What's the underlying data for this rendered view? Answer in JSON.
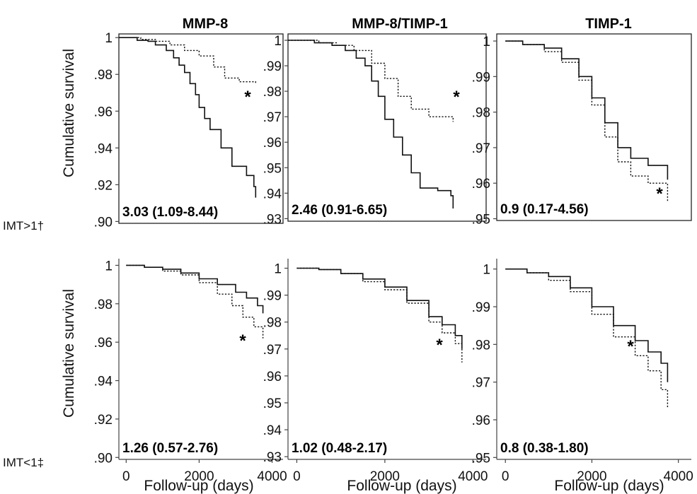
{
  "figure": {
    "ylabel": "Cumulative survival",
    "xlabel": "Follow-up (days)",
    "column_titles": [
      "MMP-8",
      "MMP-8/TIMP-1",
      "TIMP-1"
    ],
    "row_labels": [
      "IMT>1†",
      "IMT<1‡"
    ]
  },
  "chart_data": [
    {
      "type": "line",
      "row": 0,
      "col": 0,
      "title": "MMP-8",
      "row_label": "IMT>1†",
      "ylabel": "Cumulative survival",
      "xlabel": "",
      "xlim": [
        0,
        4500
      ],
      "ylim": [
        0.899,
        1.002
      ],
      "yticks": [
        1,
        0.98,
        0.96,
        0.94,
        0.92,
        0.9
      ],
      "ytick_labels": [
        "1",
        ".98",
        ".96",
        ".94",
        ".92",
        ".90"
      ],
      "xticks": [],
      "xtick_labels": [],
      "hazard_ratio": "3.03 (1.09-8.44)",
      "annotation": "*",
      "series": [
        {
          "style": "solid",
          "x": [
            0,
            500,
            800,
            1000,
            1300,
            1500,
            1650,
            1800,
            1950,
            2100,
            2200,
            2350,
            2500,
            2800,
            3100,
            3500,
            3700,
            3750
          ],
          "y": [
            1.0,
            0.9985,
            0.998,
            0.996,
            0.993,
            0.989,
            0.985,
            0.981,
            0.975,
            0.969,
            0.962,
            0.956,
            0.95,
            0.94,
            0.93,
            0.925,
            0.919,
            0.913
          ]
        },
        {
          "style": "dotted",
          "x": [
            0,
            600,
            1000,
            1400,
            1800,
            2200,
            2600,
            2900,
            3300,
            3750
          ],
          "y": [
            1.0,
            0.999,
            0.998,
            0.996,
            0.993,
            0.99,
            0.984,
            0.978,
            0.976,
            0.975
          ]
        }
      ]
    },
    {
      "type": "line",
      "row": 0,
      "col": 1,
      "title": "MMP-8/TIMP-1",
      "row_label": "IMT>1†",
      "ylabel": "",
      "xlabel": "",
      "xlim": [
        0,
        4500
      ],
      "ylim": [
        0.929,
        1.0025
      ],
      "yticks": [
        1,
        0.99,
        0.98,
        0.97,
        0.96,
        0.95,
        0.94,
        0.93
      ],
      "ytick_labels": [
        "1",
        ".99",
        ".98",
        ".97",
        ".96",
        ".95",
        ".94",
        ".93"
      ],
      "xticks": [],
      "xtick_labels": [],
      "hazard_ratio": "2.46 (0.91-6.65)",
      "annotation": "*",
      "series": [
        {
          "style": "solid",
          "x": [
            0,
            600,
            1000,
            1300,
            1550,
            1750,
            1900,
            2050,
            2200,
            2400,
            2600,
            2800,
            3000,
            3400,
            3700,
            3750
          ],
          "y": [
            1.0,
            0.999,
            0.998,
            0.996,
            0.993,
            0.99,
            0.984,
            0.978,
            0.969,
            0.962,
            0.955,
            0.948,
            0.942,
            0.941,
            0.939,
            0.934
          ]
        },
        {
          "style": "dotted",
          "x": [
            0,
            700,
            1100,
            1500,
            1900,
            2200,
            2500,
            2800,
            3200,
            3750
          ],
          "y": [
            1.0,
            0.999,
            0.998,
            0.996,
            0.991,
            0.985,
            0.978,
            0.973,
            0.97,
            0.968
          ]
        }
      ]
    },
    {
      "type": "line",
      "row": 0,
      "col": 2,
      "title": "TIMP-1",
      "row_label": "IMT>1†",
      "ylabel": "",
      "xlabel": "",
      "xlim": [
        -200,
        4300
      ],
      "ylim": [
        0.9495,
        1.002
      ],
      "yticks": [
        1,
        0.99,
        0.98,
        0.97,
        0.96,
        0.95
      ],
      "ytick_labels": [
        "1",
        ".99",
        ".98",
        ".97",
        ".96",
        ".95"
      ],
      "xticks": [],
      "xtick_labels": [],
      "hazard_ratio": "0.9 (0.17-4.56)",
      "annotation": "*",
      "series": [
        {
          "style": "solid",
          "x": [
            0,
            400,
            900,
            1300,
            1700,
            2000,
            2300,
            2600,
            2900,
            3300,
            3750
          ],
          "y": [
            1.0,
            0.999,
            0.998,
            0.995,
            0.99,
            0.984,
            0.977,
            0.97,
            0.967,
            0.965,
            0.961
          ]
        },
        {
          "style": "dotted",
          "x": [
            0,
            400,
            900,
            1300,
            1700,
            2000,
            2300,
            2600,
            2900,
            3300,
            3750
          ],
          "y": [
            1.0,
            0.999,
            0.997,
            0.994,
            0.989,
            0.982,
            0.973,
            0.966,
            0.962,
            0.96,
            0.955
          ]
        }
      ]
    },
    {
      "type": "line",
      "row": 1,
      "col": 0,
      "title": "",
      "row_label": "IMT<1‡",
      "ylabel": "Cumulative survival",
      "xlabel": "Follow-up (days)",
      "xlim": [
        -200,
        4300
      ],
      "ylim": [
        0.899,
        1.002
      ],
      "yticks": [
        1,
        0.98,
        0.96,
        0.94,
        0.92,
        0.9
      ],
      "ytick_labels": [
        "1",
        ".98",
        ".96",
        ".94",
        ".92",
        ".90"
      ],
      "xticks": [
        0,
        2000,
        4000
      ],
      "xtick_labels": [
        "0",
        "2000",
        "4000"
      ],
      "hazard_ratio": "1.26 (0.57-2.76)",
      "annotation": "*",
      "series": [
        {
          "style": "solid",
          "x": [
            0,
            500,
            1000,
            1500,
            2000,
            2500,
            3000,
            3300,
            3600,
            3750
          ],
          "y": [
            1.0,
            0.999,
            0.998,
            0.996,
            0.993,
            0.99,
            0.986,
            0.983,
            0.979,
            0.975
          ]
        },
        {
          "style": "dotted",
          "x": [
            0,
            500,
            1000,
            1500,
            2000,
            2500,
            2900,
            3200,
            3500,
            3750
          ],
          "y": [
            1.0,
            0.999,
            0.997,
            0.995,
            0.991,
            0.985,
            0.979,
            0.973,
            0.968,
            0.962
          ]
        }
      ]
    },
    {
      "type": "line",
      "row": 1,
      "col": 1,
      "title": "",
      "row_label": "IMT<1‡",
      "ylabel": "",
      "xlabel": "Follow-up (days)",
      "xlim": [
        -200,
        4300
      ],
      "ylim": [
        0.929,
        1.0025
      ],
      "yticks": [
        1,
        0.99,
        0.98,
        0.97,
        0.96,
        0.95,
        0.94,
        0.93
      ],
      "ytick_labels": [
        "1",
        ".99",
        ".98",
        ".97",
        ".96",
        ".95",
        ".94",
        ".93"
      ],
      "xticks": [
        0,
        2000,
        4000
      ],
      "xtick_labels": [
        "0",
        "2000",
        "4000"
      ],
      "hazard_ratio": "1.02 (0.48-2.17)",
      "annotation": "*",
      "series": [
        {
          "style": "solid",
          "x": [
            0,
            500,
            1000,
            1500,
            2000,
            2500,
            3000,
            3300,
            3600,
            3750
          ],
          "y": [
            1.0,
            0.9995,
            0.998,
            0.996,
            0.993,
            0.988,
            0.982,
            0.979,
            0.975,
            0.97
          ]
        },
        {
          "style": "dotted",
          "x": [
            0,
            500,
            1000,
            1500,
            2000,
            2500,
            3000,
            3300,
            3600,
            3750
          ],
          "y": [
            1.0,
            0.9995,
            0.998,
            0.995,
            0.992,
            0.987,
            0.98,
            0.976,
            0.972,
            0.965
          ]
        }
      ]
    },
    {
      "type": "line",
      "row": 1,
      "col": 2,
      "title": "",
      "row_label": "IMT<1‡",
      "ylabel": "",
      "xlabel": "Follow-up (days)",
      "xlim": [
        -200,
        4300
      ],
      "ylim": [
        0.9495,
        1.002
      ],
      "yticks": [
        1,
        0.99,
        0.98,
        0.97,
        0.96,
        0.95
      ],
      "ytick_labels": [
        "1",
        ".99",
        ".98",
        ".97",
        ".96",
        ".95"
      ],
      "xticks": [
        0,
        2000,
        4000
      ],
      "xtick_labels": [
        "0",
        "2000",
        "4000"
      ],
      "hazard_ratio": "0.8 (0.38-1.80)",
      "annotation": "*",
      "series": [
        {
          "style": "solid",
          "x": [
            0,
            500,
            1000,
            1500,
            2000,
            2500,
            3000,
            3300,
            3600,
            3750
          ],
          "y": [
            1.0,
            0.999,
            0.998,
            0.995,
            0.99,
            0.985,
            0.981,
            0.978,
            0.975,
            0.97
          ]
        },
        {
          "style": "dotted",
          "x": [
            0,
            500,
            1000,
            1500,
            2000,
            2500,
            3000,
            3300,
            3600,
            3750
          ],
          "y": [
            1.0,
            0.999,
            0.997,
            0.994,
            0.988,
            0.982,
            0.977,
            0.973,
            0.968,
            0.963
          ]
        }
      ]
    }
  ]
}
